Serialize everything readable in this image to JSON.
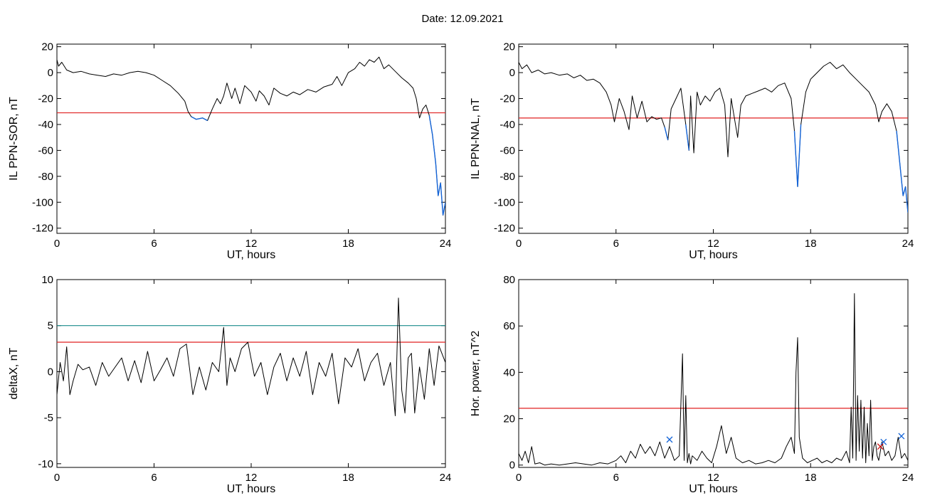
{
  "header": {
    "date_label": "Date:",
    "date_value": "12.09.2021"
  },
  "colors": {
    "trace": "#000000",
    "below_threshold": "#1565d8",
    "threshold": "#e02020",
    "upper_threshold": "#1a8c8c",
    "cross_blue": "#1565d8",
    "cross_red": "#d01010",
    "small_green": "#2aa02a"
  },
  "chart_data": [
    {
      "id": "sor",
      "type": "line",
      "ylabel": "IL PPN-SOR, nT",
      "xlabel": "UT, hours",
      "xlim": [
        0,
        24
      ],
      "ylim": [
        -124,
        22
      ],
      "xticks": [
        0,
        6,
        12,
        18,
        24
      ],
      "yticks": [
        20,
        0,
        -20,
        -40,
        -60,
        -80,
        -100,
        -120
      ],
      "thresholds": [
        {
          "y": -31,
          "color": "red"
        }
      ],
      "below_color_under": -31,
      "series": [
        {
          "x": [
            0,
            0.1,
            0.3,
            0.6,
            1.0,
            1.5,
            2.0,
            2.5,
            3.0,
            3.5,
            4.0,
            4.5,
            5.0,
            5.5,
            6.0,
            6.5,
            7.0,
            7.5,
            7.9,
            8.1,
            8.3,
            8.6,
            9.0,
            9.3,
            9.6,
            9.9,
            10.1,
            10.3,
            10.5,
            10.8,
            11.0,
            11.3,
            11.6,
            12.0,
            12.3,
            12.5,
            12.8,
            13.1,
            13.4,
            13.8,
            14.2,
            14.6,
            15.0,
            15.5,
            16.0,
            16.5,
            17.0,
            17.3,
            17.6,
            18.0,
            18.4,
            18.7,
            19.0,
            19.3,
            19.6,
            19.9,
            20.2,
            20.5,
            20.9,
            21.3,
            21.7,
            22.0,
            22.2,
            22.4,
            22.6,
            22.8,
            23.0,
            23.2,
            23.4,
            23.55,
            23.7,
            23.85,
            24.0
          ],
          "y": [
            10,
            5,
            8,
            2,
            0,
            1,
            -1,
            -2,
            -3,
            -1,
            -2,
            0,
            1,
            0,
            -2,
            -6,
            -10,
            -16,
            -22,
            -30,
            -34,
            -36,
            -35,
            -37,
            -28,
            -20,
            -24,
            -18,
            -8,
            -20,
            -12,
            -24,
            -10,
            -15,
            -22,
            -14,
            -18,
            -25,
            -12,
            -16,
            -18,
            -15,
            -17,
            -13,
            -15,
            -11,
            -9,
            -3,
            -10,
            0,
            3,
            8,
            5,
            10,
            8,
            12,
            3,
            6,
            1,
            -4,
            -8,
            -12,
            -20,
            -35,
            -28,
            -25,
            -33,
            -48,
            -70,
            -95,
            -85,
            -110,
            -100
          ]
        }
      ]
    },
    {
      "id": "nal",
      "type": "line",
      "ylabel": "IL PPN-NAL, nT",
      "xlabel": "UT, hours",
      "xlim": [
        0,
        24
      ],
      "ylim": [
        -124,
        22
      ],
      "xticks": [
        0,
        6,
        12,
        18,
        24
      ],
      "yticks": [
        20,
        0,
        -20,
        -40,
        -60,
        -80,
        -100,
        -120
      ],
      "thresholds": [
        {
          "y": -35,
          "color": "red"
        }
      ],
      "below_color_under": -35,
      "series": [
        {
          "x": [
            0,
            0.2,
            0.5,
            0.8,
            1.2,
            1.6,
            2.0,
            2.5,
            3.0,
            3.4,
            3.8,
            4.2,
            4.6,
            5.0,
            5.4,
            5.7,
            5.9,
            6.2,
            6.5,
            6.8,
            7.0,
            7.3,
            7.6,
            7.9,
            8.2,
            8.5,
            8.8,
            9.0,
            9.2,
            9.4,
            9.7,
            10.0,
            10.3,
            10.5,
            10.6,
            10.8,
            11.0,
            11.2,
            11.5,
            11.8,
            12.1,
            12.4,
            12.7,
            12.9,
            13.1,
            13.3,
            13.5,
            13.7,
            14.0,
            14.4,
            14.8,
            15.2,
            15.6,
            16.0,
            16.4,
            16.8,
            17.0,
            17.2,
            17.4,
            17.7,
            18.0,
            18.4,
            18.8,
            19.2,
            19.6,
            20.0,
            20.4,
            20.8,
            21.2,
            21.6,
            22.0,
            22.2,
            22.4,
            22.7,
            23.0,
            23.3,
            23.5,
            23.7,
            23.85,
            24.0
          ],
          "y": [
            8,
            3,
            6,
            0,
            2,
            -1,
            0,
            -2,
            -1,
            -4,
            -2,
            -6,
            -5,
            -8,
            -15,
            -25,
            -38,
            -20,
            -30,
            -44,
            -18,
            -35,
            -22,
            -38,
            -34,
            -36,
            -35,
            -42,
            -52,
            -28,
            -20,
            -12,
            -40,
            -60,
            -18,
            -62,
            -15,
            -25,
            -18,
            -22,
            -15,
            -12,
            -25,
            -65,
            -20,
            -35,
            -50,
            -25,
            -18,
            -16,
            -14,
            -12,
            -15,
            -10,
            -8,
            -20,
            -45,
            -88,
            -40,
            -15,
            -5,
            0,
            5,
            8,
            3,
            6,
            0,
            -5,
            -10,
            -15,
            -25,
            -38,
            -30,
            -24,
            -30,
            -45,
            -70,
            -95,
            -88,
            -108
          ]
        }
      ]
    },
    {
      "id": "dx",
      "type": "line",
      "ylabel": "deltaX, nT",
      "xlabel": "UT, hours",
      "xlim": [
        0,
        24
      ],
      "ylim": [
        -10.4,
        10
      ],
      "xticks": [
        0,
        6,
        12,
        18,
        24
      ],
      "yticks": [
        10,
        5,
        0,
        -5,
        -10
      ],
      "thresholds": [
        {
          "y": 5,
          "color": "teal"
        },
        {
          "y": 3.2,
          "color": "red"
        }
      ],
      "series": [
        {
          "x": [
            0,
            0.2,
            0.4,
            0.6,
            0.8,
            1.0,
            1.3,
            1.6,
            2.0,
            2.4,
            2.8,
            3.2,
            3.6,
            4.0,
            4.4,
            4.8,
            5.2,
            5.6,
            6.0,
            6.4,
            6.8,
            7.2,
            7.6,
            8.0,
            8.4,
            8.8,
            9.2,
            9.6,
            10.0,
            10.3,
            10.5,
            10.7,
            11.0,
            11.4,
            11.8,
            12.2,
            12.6,
            13.0,
            13.4,
            13.8,
            14.2,
            14.6,
            15.0,
            15.4,
            15.8,
            16.2,
            16.6,
            17.0,
            17.4,
            17.8,
            18.2,
            18.6,
            19.0,
            19.4,
            19.8,
            20.2,
            20.6,
            20.9,
            21.1,
            21.3,
            21.5,
            21.7,
            21.9,
            22.1,
            22.4,
            22.7,
            23.0,
            23.3,
            23.6,
            24.0
          ],
          "y": [
            -2.5,
            1,
            -1,
            2.7,
            -2.5,
            -1,
            0.8,
            0.2,
            0.5,
            -1.5,
            1.0,
            -0.5,
            0.5,
            1.5,
            -1.0,
            1.2,
            -1.2,
            2.2,
            -1.0,
            0.2,
            1.5,
            -0.5,
            2.5,
            3.0,
            -2.5,
            0.5,
            -2.0,
            1.0,
            0.0,
            4.8,
            -1.5,
            1.5,
            0.0,
            2.5,
            3.2,
            -0.5,
            1.0,
            -2.5,
            0.5,
            2.0,
            -1.0,
            1.5,
            -0.5,
            2.2,
            -2.5,
            1.0,
            -0.5,
            2.0,
            -3.5,
            1.5,
            0.5,
            2.5,
            -1.0,
            1.0,
            2.0,
            -1.5,
            1.0,
            -4.8,
            8.0,
            -2.0,
            -4.5,
            1.5,
            2.0,
            -4.5,
            0.5,
            -3.0,
            2.5,
            -1.5,
            2.8,
            1.0
          ]
        }
      ]
    },
    {
      "id": "pw",
      "type": "line",
      "ylabel": "Hor. power, nT^2",
      "xlabel": "UT, hours",
      "xlim": [
        0,
        24
      ],
      "ylim": [
        -1,
        80
      ],
      "xticks": [
        0,
        6,
        12,
        18,
        24
      ],
      "yticks": [
        80,
        60,
        40,
        20,
        0
      ],
      "thresholds": [
        {
          "y": 24.5,
          "color": "red"
        }
      ],
      "markers": [
        {
          "x": 9.3,
          "y": 11,
          "color": "blue"
        },
        {
          "x": 22.5,
          "y": 10,
          "color": "blue"
        },
        {
          "x": 23.6,
          "y": 12.5,
          "color": "blue"
        },
        {
          "x": 22.3,
          "y": 8,
          "color": "red"
        }
      ],
      "series": [
        {
          "x": [
            0,
            0.2,
            0.4,
            0.6,
            0.8,
            1.0,
            1.3,
            1.6,
            2.0,
            2.5,
            3.0,
            3.5,
            4.0,
            4.5,
            5.0,
            5.5,
            6.0,
            6.3,
            6.6,
            6.9,
            7.2,
            7.5,
            7.8,
            8.1,
            8.4,
            8.7,
            9.0,
            9.3,
            9.6,
            9.9,
            10.1,
            10.2,
            10.3,
            10.4,
            10.5,
            10.6,
            10.7,
            11.0,
            11.3,
            11.6,
            11.9,
            12.2,
            12.5,
            12.8,
            13.1,
            13.4,
            13.8,
            14.2,
            14.6,
            15.0,
            15.4,
            15.8,
            16.2,
            16.5,
            16.8,
            17.0,
            17.1,
            17.2,
            17.3,
            17.5,
            17.8,
            18.1,
            18.4,
            18.7,
            19.0,
            19.3,
            19.6,
            19.9,
            20.2,
            20.4,
            20.5,
            20.6,
            20.7,
            20.8,
            20.9,
            21.0,
            21.1,
            21.2,
            21.3,
            21.4,
            21.5,
            21.6,
            21.7,
            21.8,
            21.9,
            22.0,
            22.1,
            22.2,
            22.4,
            22.6,
            22.8,
            23.0,
            23.2,
            23.4,
            23.6,
            23.8,
            24.0
          ],
          "y": [
            5,
            2,
            6,
            1,
            8,
            0.5,
            1,
            0,
            0.5,
            0,
            0.5,
            1,
            0.5,
            0,
            1,
            0.5,
            2,
            4,
            1,
            6,
            3,
            9,
            5,
            8,
            4,
            10,
            3,
            8,
            2,
            4,
            48,
            2,
            30,
            1,
            5,
            0.5,
            4,
            2,
            6,
            3,
            1,
            8,
            17,
            5,
            12,
            3,
            1,
            2,
            0.5,
            1,
            2,
            1,
            3,
            8,
            12,
            5,
            40,
            55,
            12,
            3,
            1,
            2,
            3,
            1,
            2,
            1,
            3,
            2,
            6,
            1,
            25,
            3,
            74,
            2,
            30,
            6,
            28,
            3,
            25,
            1,
            18,
            4,
            28,
            2,
            8,
            10,
            4,
            2,
            10,
            4,
            6,
            2,
            4,
            12,
            3,
            5,
            2
          ]
        }
      ]
    }
  ]
}
